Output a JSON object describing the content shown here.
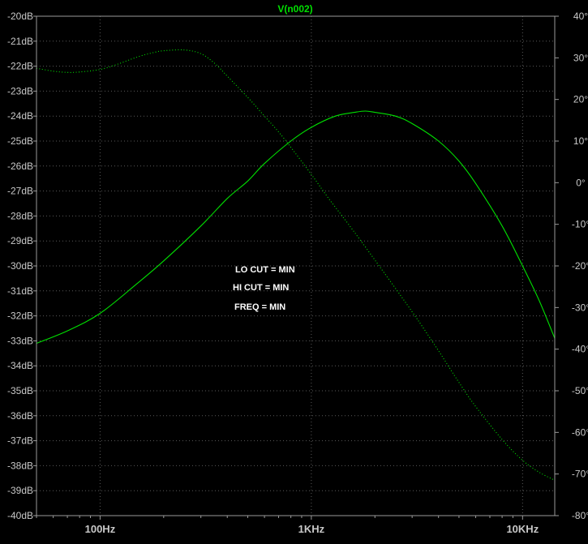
{
  "window": {
    "title": "V(n002)"
  },
  "annotations": [
    "LO CUT = MIN",
    "HI CUT = MIN",
    "FREQ = MIN"
  ],
  "colors": {
    "background": "#000000",
    "frame": "#9a9a9a",
    "grid": "#5a5a5a",
    "tick_label": "#c8c8c8",
    "trace": "#00e000",
    "title": "#00e000",
    "annotation": "#ffffff"
  },
  "chart_data": {
    "type": "line",
    "title": "V(n002)",
    "x_scale": "log",
    "xlim": [
      50,
      14200
    ],
    "xticks": [
      {
        "value": 100,
        "label": "100Hz"
      },
      {
        "value": 1000,
        "label": "1KHz"
      },
      {
        "value": 10000,
        "label": "10KHz"
      }
    ],
    "y_left": {
      "unit": "dB",
      "lim": [
        -40,
        -20
      ],
      "ticks": [
        -20,
        -21,
        -22,
        -23,
        -24,
        -25,
        -26,
        -27,
        -28,
        -29,
        -30,
        -31,
        -32,
        -33,
        -34,
        -35,
        -36,
        -37,
        -38,
        -39,
        -40
      ],
      "tick_labels": [
        "-20dB",
        "-21dB",
        "-22dB",
        "-23dB",
        "-24dB",
        "-25dB",
        "-26dB",
        "-27dB",
        "-28dB",
        "-29dB",
        "-30dB",
        "-31dB",
        "-32dB",
        "-33dB",
        "-34dB",
        "-35dB",
        "-36dB",
        "-37dB",
        "-38dB",
        "-39dB",
        "-40dB"
      ]
    },
    "y_right": {
      "unit": "°",
      "lim": [
        -80,
        40
      ],
      "ticks": [
        40,
        30,
        20,
        10,
        0,
        -10,
        -20,
        -30,
        -40,
        -50,
        -60,
        -70,
        -80
      ],
      "tick_labels": [
        "40°",
        "30°",
        "20°",
        "10°",
        "0°",
        "-10°",
        "-20°",
        "-30°",
        "-40°",
        "-50°",
        "-60°",
        "-70°",
        "-80°"
      ]
    },
    "grid": true,
    "series": [
      {
        "axis": "left",
        "style": "solid",
        "x": [
          50,
          70,
          100,
          150,
          200,
          300,
          400,
          500,
          600,
          800,
          1000,
          1300,
          1600,
          1800,
          2000,
          2500,
          3000,
          4000,
          5000,
          6000,
          8000,
          10000,
          12000,
          14200
        ],
        "y": [
          -33.1,
          -32.6,
          -31.9,
          -30.7,
          -29.8,
          -28.4,
          -27.3,
          -26.6,
          -25.9,
          -25.0,
          -24.45,
          -24.0,
          -23.85,
          -23.8,
          -23.85,
          -24.0,
          -24.3,
          -25.0,
          -25.8,
          -26.7,
          -28.4,
          -30.0,
          -31.4,
          -32.9
        ]
      },
      {
        "axis": "right",
        "style": "dotted",
        "x": [
          50,
          60,
          70,
          80,
          100,
          120,
          150,
          180,
          200,
          250,
          300,
          350,
          400,
          500,
          600,
          700,
          800,
          1000,
          1200,
          1500,
          2000,
          3000,
          4000,
          5000,
          6000,
          8000,
          10000,
          12000,
          14200
        ],
        "y": [
          27.5,
          26.8,
          26.5,
          26.6,
          27.2,
          28.4,
          30.2,
          31.3,
          31.7,
          31.9,
          31.0,
          28.6,
          25.6,
          20.5,
          16.0,
          12.2,
          8.5,
          2.0,
          -3.6,
          -10.0,
          -18.6,
          -31.0,
          -40.4,
          -48.0,
          -53.8,
          -61.7,
          -66.7,
          -69.6,
          -71.5
        ]
      }
    ]
  }
}
